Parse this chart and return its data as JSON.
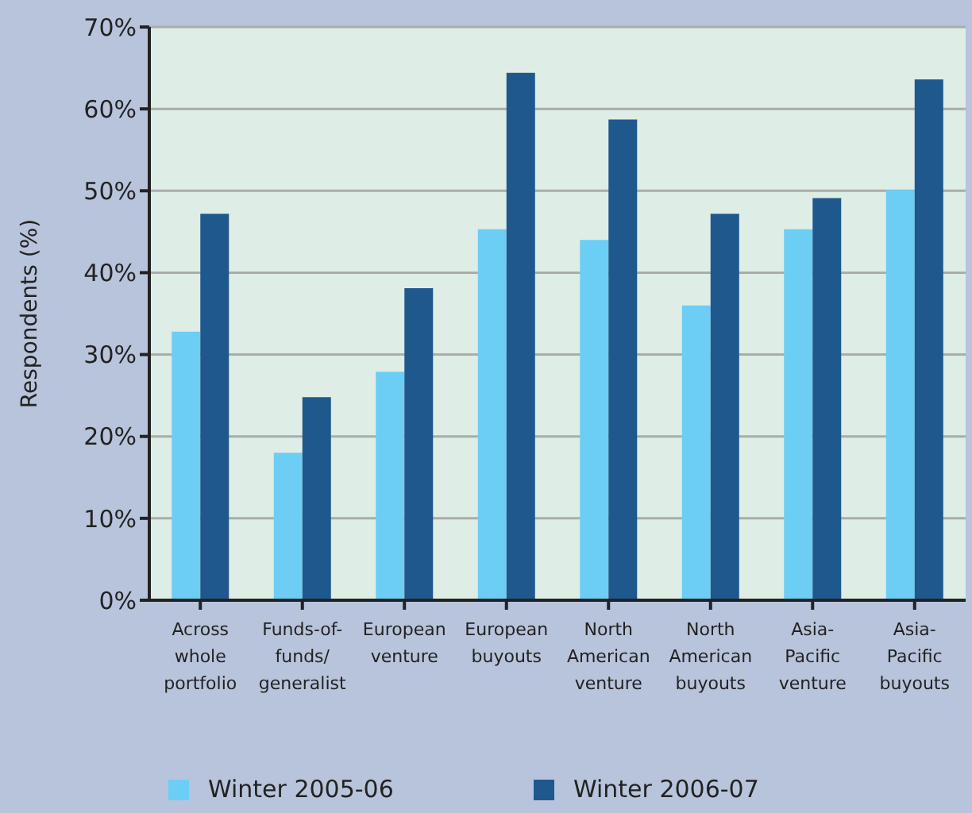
{
  "chart_data": {
    "type": "bar",
    "ylabel": "Respondents (%)",
    "categories": [
      "Across\nwhole\nportfolio",
      "Funds-of-\nfunds/\ngeneralist",
      "European\nventure",
      "European\nbuyouts",
      "North\nAmerican\nventure",
      "North\nAmerican\nbuyouts",
      "Asia-\nPacific\nventure",
      "Asia-\nPacific\nbuyouts"
    ],
    "series": [
      {
        "name": "Winter 2005-06",
        "color": "#6ccef4",
        "values": [
          32.8,
          18.0,
          27.9,
          45.3,
          44.0,
          36.0,
          45.3,
          50.1
        ]
      },
      {
        "name": "Winter 2006-07",
        "color": "#1f588d",
        "values": [
          47.2,
          24.8,
          38.1,
          64.4,
          58.7,
          47.2,
          49.1,
          63.6
        ]
      }
    ],
    "ylim": [
      0,
      70
    ],
    "yticks": [
      {
        "value": 0,
        "label": "0%"
      },
      {
        "value": 10,
        "label": "10%"
      },
      {
        "value": 20,
        "label": "20%"
      },
      {
        "value": 30,
        "label": "30%"
      },
      {
        "value": 40,
        "label": "40%"
      },
      {
        "value": 50,
        "label": "50%"
      },
      {
        "value": 60,
        "label": "60%"
      },
      {
        "value": 70,
        "label": "70%"
      }
    ],
    "grid": "y",
    "legend": "bottom"
  }
}
